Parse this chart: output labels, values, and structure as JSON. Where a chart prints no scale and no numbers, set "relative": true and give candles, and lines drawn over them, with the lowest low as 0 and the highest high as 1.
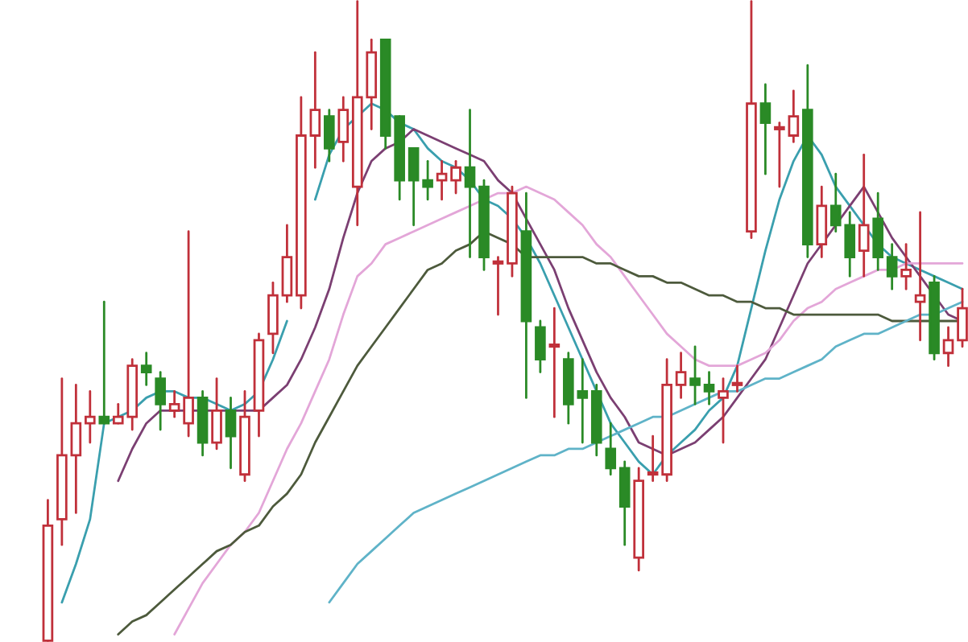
{
  "chart_data": {
    "type": "candlestick",
    "relative": true,
    "categories": [
      null,
      null,
      null,
      null,
      null,
      null,
      null,
      null,
      null,
      null,
      null,
      null,
      null,
      null,
      null,
      null,
      null,
      null,
      null,
      null,
      null,
      null,
      null,
      null,
      null,
      null,
      null,
      null,
      null,
      null,
      null,
      null,
      null,
      null,
      null,
      null,
      null,
      null,
      null,
      null,
      null,
      null,
      null,
      null,
      null,
      null,
      null,
      null,
      null,
      null,
      null,
      null,
      null,
      null,
      null,
      null,
      null,
      null,
      null,
      null,
      null,
      null,
      null,
      null,
      null,
      null
    ],
    "ohlc": [
      [
        0.0,
        0.22,
        0.0,
        0.18
      ],
      [
        0.19,
        0.41,
        0.15,
        0.29
      ],
      [
        0.29,
        0.4,
        0.2,
        0.34
      ],
      [
        0.34,
        0.39,
        0.31,
        0.35
      ],
      [
        0.35,
        0.53,
        0.34,
        0.34
      ],
      [
        0.34,
        0.37,
        0.34,
        0.35
      ],
      [
        0.35,
        0.44,
        0.33,
        0.43
      ],
      [
        0.43,
        0.45,
        0.4,
        0.42
      ],
      [
        0.41,
        0.42,
        0.33,
        0.37
      ],
      [
        0.36,
        0.39,
        0.35,
        0.37
      ],
      [
        0.34,
        0.64,
        0.32,
        0.38
      ],
      [
        0.38,
        0.39,
        0.29,
        0.31
      ],
      [
        0.31,
        0.41,
        0.3,
        0.36
      ],
      [
        0.36,
        0.38,
        0.27,
        0.32
      ],
      [
        0.26,
        0.39,
        0.25,
        0.35
      ],
      [
        0.36,
        0.48,
        0.32,
        0.47
      ],
      [
        0.48,
        0.56,
        0.45,
        0.54
      ],
      [
        0.54,
        0.65,
        0.53,
        0.6
      ],
      [
        0.54,
        0.85,
        0.52,
        0.79
      ],
      [
        0.79,
        0.92,
        0.74,
        0.83
      ],
      [
        0.82,
        0.83,
        0.75,
        0.77
      ],
      [
        0.78,
        0.85,
        0.75,
        0.83
      ],
      [
        0.71,
        1.0,
        0.65,
        0.85
      ],
      [
        0.85,
        0.94,
        0.8,
        0.92
      ],
      [
        0.94,
        0.94,
        0.77,
        0.79
      ],
      [
        0.82,
        0.82,
        0.69,
        0.72
      ],
      [
        0.77,
        0.77,
        0.65,
        0.72
      ],
      [
        0.72,
        0.75,
        0.69,
        0.71
      ],
      [
        0.72,
        0.75,
        0.69,
        0.73
      ],
      [
        0.72,
        0.75,
        0.7,
        0.74
      ],
      [
        0.74,
        0.83,
        0.6,
        0.71
      ],
      [
        0.71,
        0.72,
        0.58,
        0.6
      ],
      [
        0.59,
        0.6,
        0.51,
        0.59
      ],
      [
        0.59,
        0.71,
        0.57,
        0.7
      ],
      [
        0.64,
        0.7,
        0.38,
        0.5
      ],
      [
        0.49,
        0.5,
        0.42,
        0.44
      ],
      [
        0.46,
        0.52,
        0.35,
        0.46
      ],
      [
        0.44,
        0.45,
        0.34,
        0.37
      ],
      [
        0.39,
        0.44,
        0.31,
        0.38
      ],
      [
        0.39,
        0.4,
        0.29,
        0.31
      ],
      [
        0.3,
        0.34,
        0.26,
        0.27
      ],
      [
        0.27,
        0.28,
        0.15,
        0.21
      ],
      [
        0.13,
        0.27,
        0.11,
        0.25
      ],
      [
        0.26,
        0.32,
        0.25,
        0.26
      ],
      [
        0.26,
        0.44,
        0.25,
        0.4
      ],
      [
        0.4,
        0.45,
        0.38,
        0.42
      ],
      [
        0.41,
        0.46,
        0.37,
        0.4
      ],
      [
        0.4,
        0.42,
        0.37,
        0.39
      ],
      [
        0.38,
        0.41,
        0.31,
        0.39
      ],
      [
        0.4,
        0.43,
        0.39,
        0.4
      ],
      [
        0.64,
        1.0,
        0.63,
        0.84
      ],
      [
        0.84,
        0.87,
        0.73,
        0.81
      ],
      [
        0.8,
        0.81,
        0.71,
        0.8
      ],
      [
        0.79,
        0.86,
        0.78,
        0.82
      ],
      [
        0.83,
        0.9,
        0.6,
        0.62
      ],
      [
        0.62,
        0.71,
        0.6,
        0.68
      ],
      [
        0.68,
        0.73,
        0.64,
        0.65
      ],
      [
        0.65,
        0.67,
        0.57,
        0.6
      ],
      [
        0.61,
        0.76,
        0.57,
        0.65
      ],
      [
        0.66,
        0.7,
        0.58,
        0.6
      ],
      [
        0.6,
        0.62,
        0.55,
        0.57
      ],
      [
        0.57,
        0.62,
        0.55,
        0.58
      ],
      [
        0.53,
        0.67,
        0.47,
        0.54
      ],
      [
        0.56,
        0.57,
        0.44,
        0.45
      ],
      [
        0.45,
        0.49,
        0.43,
        0.47
      ],
      [
        0.47,
        0.55,
        0.46,
        0.52
      ]
    ],
    "series": [
      {
        "type": "line",
        "color": "#3a9fae",
        "values": [
          null,
          0.06,
          0.12,
          0.19,
          0.34,
          0.35,
          0.36,
          0.38,
          0.39,
          0.39,
          0.38,
          0.38,
          0.37,
          0.36,
          0.37,
          0.39,
          0.44,
          0.5,
          null,
          0.69,
          0.76,
          0.8,
          0.82,
          0.84,
          0.83,
          0.81,
          0.8,
          0.77,
          0.75,
          0.74,
          0.72,
          0.69,
          0.68,
          0.66,
          0.63,
          0.59,
          0.54,
          0.49,
          0.44,
          0.39,
          0.34,
          0.31,
          0.28,
          0.26,
          0.29,
          0.31,
          0.33,
          0.36,
          0.38,
          0.43,
          0.52,
          0.61,
          0.69,
          0.75,
          0.79,
          0.76,
          0.71,
          0.68,
          0.65,
          0.62,
          0.6,
          0.59,
          0.58,
          0.57,
          0.56,
          0.55
        ]
      },
      {
        "type": "line",
        "color": "#7b3f72",
        "values": [
          null,
          null,
          null,
          null,
          null,
          0.25,
          0.3,
          0.34,
          0.36,
          0.36,
          0.36,
          0.36,
          0.36,
          0.36,
          0.36,
          0.36,
          0.38,
          0.4,
          0.44,
          0.49,
          0.55,
          0.63,
          0.7,
          0.75,
          0.77,
          0.78,
          0.8,
          0.79,
          0.78,
          0.77,
          0.76,
          0.75,
          0.72,
          0.7,
          0.66,
          0.62,
          0.58,
          0.52,
          0.47,
          0.42,
          0.38,
          0.35,
          0.31,
          0.3,
          0.29,
          0.3,
          0.31,
          0.33,
          0.35,
          0.38,
          0.41,
          0.44,
          0.49,
          0.54,
          0.59,
          0.62,
          0.65,
          0.68,
          0.71,
          0.67,
          0.63,
          0.6,
          0.57,
          0.54,
          0.51,
          0.5
        ]
      },
      {
        "type": "line",
        "color": "#e3a6d8",
        "values": [
          null,
          null,
          null,
          null,
          null,
          null,
          null,
          null,
          null,
          0.01,
          0.05,
          0.09,
          0.12,
          0.15,
          0.17,
          0.2,
          0.25,
          0.3,
          0.34,
          0.39,
          0.44,
          0.51,
          0.57,
          0.59,
          0.62,
          0.63,
          0.64,
          0.65,
          0.66,
          0.67,
          0.68,
          0.69,
          0.7,
          0.7,
          0.71,
          0.7,
          0.69,
          0.67,
          0.65,
          0.62,
          0.6,
          0.57,
          0.54,
          0.51,
          0.48,
          0.46,
          0.44,
          0.43,
          0.43,
          0.43,
          0.44,
          0.45,
          0.47,
          0.5,
          0.52,
          0.53,
          0.55,
          0.56,
          0.57,
          0.58,
          0.58,
          0.59,
          0.59,
          0.59,
          0.59,
          0.59
        ]
      },
      {
        "type": "line",
        "color": "#4d5a3c",
        "values": [
          null,
          null,
          null,
          null,
          null,
          0.01,
          0.03,
          0.04,
          0.06,
          0.08,
          0.1,
          0.12,
          0.14,
          0.15,
          0.17,
          0.18,
          0.21,
          0.23,
          0.26,
          0.31,
          0.35,
          0.39,
          0.43,
          0.46,
          0.49,
          0.52,
          0.55,
          0.58,
          0.59,
          0.61,
          0.62,
          0.64,
          0.63,
          0.62,
          0.6,
          0.6,
          0.6,
          0.6,
          0.6,
          0.59,
          0.59,
          0.58,
          0.57,
          0.57,
          0.56,
          0.56,
          0.55,
          0.54,
          0.54,
          0.53,
          0.53,
          0.52,
          0.52,
          0.51,
          0.51,
          0.51,
          0.51,
          0.51,
          0.51,
          0.51,
          0.5,
          0.5,
          0.5,
          0.5,
          0.5,
          0.5
        ]
      },
      {
        "type": "line",
        "color": "#5fb3c8",
        "values": [
          null,
          null,
          null,
          null,
          null,
          null,
          null,
          null,
          null,
          null,
          null,
          null,
          null,
          null,
          null,
          null,
          null,
          null,
          null,
          null,
          0.06,
          0.09,
          0.12,
          0.14,
          0.16,
          0.18,
          0.2,
          0.21,
          0.22,
          0.23,
          0.24,
          0.25,
          0.26,
          0.27,
          0.28,
          0.29,
          0.29,
          0.3,
          0.3,
          0.31,
          0.32,
          0.33,
          0.34,
          0.35,
          0.35,
          0.36,
          0.37,
          0.38,
          0.39,
          0.39,
          0.4,
          0.41,
          0.41,
          0.42,
          0.43,
          0.44,
          0.46,
          0.47,
          0.48,
          0.48,
          0.49,
          0.5,
          0.51,
          0.51,
          0.52,
          0.53
        ]
      }
    ]
  }
}
